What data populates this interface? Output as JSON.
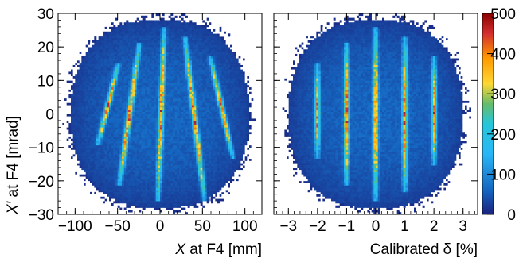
{
  "chart_data": [
    {
      "type": "heatmap",
      "panel": "left",
      "xlabel": "X at F4 [mm]",
      "xlabel_italic": "X",
      "xlabel_rest": " at F4 [mm]",
      "ylabel": "X′ at F4 [mrad]",
      "ylabel_italic": "X′",
      "ylabel_rest": " at F4 [mrad]",
      "xlim": [
        -120,
        120
      ],
      "ylim": [
        -30,
        30
      ],
      "xticks": [
        -100,
        -50,
        0,
        50,
        100
      ],
      "xtick_labels": [
        "−100",
        "−50",
        "0",
        "50",
        "100"
      ],
      "yticks": [
        -30,
        -20,
        -10,
        0,
        10,
        20,
        30
      ],
      "ytick_labels": [
        "−30",
        "−20",
        "−10",
        "0",
        "10",
        "20",
        "30"
      ],
      "envelope": {
        "x_center": 0,
        "y_center": 0,
        "x_halfwidth": 105,
        "y_halfwidth": 28
      },
      "stripes": [
        {
          "x_top": -50,
          "y_top": 14,
          "x_bottom": -72,
          "y_bottom": -8
        },
        {
          "x_top": -25,
          "y_top": 20,
          "x_bottom": -47,
          "y_bottom": -20
        },
        {
          "x_top": 5,
          "y_top": 25,
          "x_bottom": -2,
          "y_bottom": -25
        },
        {
          "x_top": 30,
          "y_top": 22,
          "x_bottom": 52,
          "y_bottom": -25
        },
        {
          "x_top": 60,
          "y_top": 16,
          "x_bottom": 85,
          "y_bottom": -12
        }
      ]
    },
    {
      "type": "heatmap",
      "panel": "right",
      "xlabel": "Calibrated δ [%]",
      "xlim": [
        -3.5,
        3.5
      ],
      "ylim": [
        -30,
        30
      ],
      "xticks": [
        -3,
        -2,
        -1,
        0,
        1,
        2,
        3
      ],
      "xtick_labels": [
        "−3",
        "−2",
        "−1",
        "0",
        "1",
        "2",
        "3"
      ],
      "envelope": {
        "x_center": 0,
        "y_center": 0,
        "x_halfwidth": 3.0,
        "y_halfwidth": 28
      },
      "stripes": [
        {
          "x_top": -2,
          "y_top": 14,
          "x_bottom": -2,
          "y_bottom": -12
        },
        {
          "x_top": -1,
          "y_top": 20,
          "x_bottom": -1,
          "y_bottom": -20
        },
        {
          "x_top": 0,
          "y_top": 25,
          "x_bottom": 0,
          "y_bottom": -25
        },
        {
          "x_top": 1,
          "y_top": 22,
          "x_bottom": 1,
          "y_bottom": -22
        },
        {
          "x_top": 2,
          "y_top": 16,
          "x_bottom": 2,
          "y_bottom": -14
        }
      ]
    }
  ],
  "colorbar": {
    "zlim": [
      0,
      500
    ],
    "ticks": [
      0,
      100,
      200,
      300,
      400,
      500
    ],
    "tick_labels": [
      "0",
      "100",
      "200",
      "300",
      "400",
      "500"
    ],
    "palette": [
      "#ffffff",
      "#1a237e",
      "#1565c0",
      "#29b6f6",
      "#66bb6a",
      "#fdd835",
      "#ff9800",
      "#d32f2f",
      "#8b0000"
    ]
  }
}
